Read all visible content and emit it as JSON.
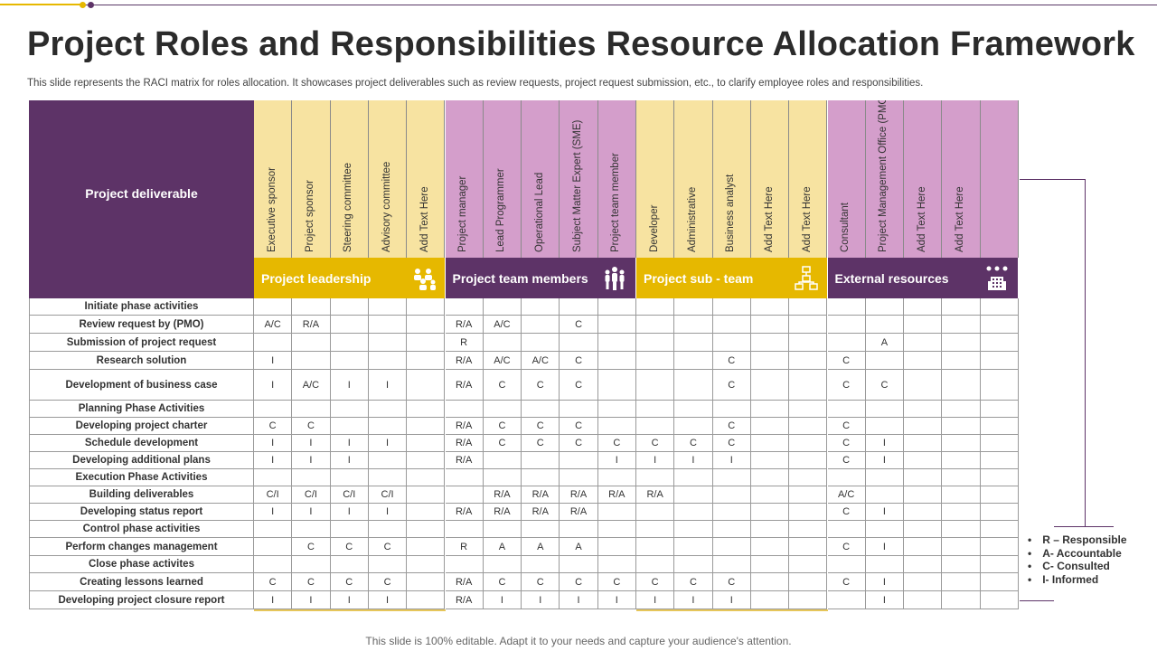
{
  "page": {
    "title": "Project Roles and Responsibilities Resource Allocation Framework",
    "subtitle": "This slide represents the RACI matrix for roles allocation. It showcases project deliverables such as review requests, project request submission, etc., to clarify employee roles and responsibilities.",
    "footer": "This slide is 100% editable. Adapt it to your needs and capture your audience's attention."
  },
  "colors": {
    "purple_dark": "#5d3367",
    "gold": "#e6b800",
    "yellow_light": "#f7e3a1",
    "pink_light": "#d49ecb"
  },
  "matrix": {
    "deliverable_header": "Project deliverable",
    "groups": [
      {
        "name": "Project leadership",
        "icon": "group-people-icon",
        "color": "#e6b800"
      },
      {
        "name": "Project team members",
        "icon": "team-members-icon",
        "color": "#5d3367"
      },
      {
        "name": "Project sub - team",
        "icon": "org-chart-icon",
        "color": "#e6b800"
      },
      {
        "name": "External resources",
        "icon": "building-network-icon",
        "color": "#5d3367"
      }
    ],
    "columns": [
      {
        "label": "Executive sponsor",
        "group": 0
      },
      {
        "label": "Project sponsor",
        "group": 0
      },
      {
        "label": "Steering committee",
        "group": 0
      },
      {
        "label": "Advisory committee",
        "group": 0
      },
      {
        "label": "Add Text Here",
        "group": 0
      },
      {
        "label": "Project manager",
        "group": 1
      },
      {
        "label": "Lead Programmer",
        "group": 1
      },
      {
        "label": "Operational Lead",
        "group": 1
      },
      {
        "label": "Subject Matter Expert (SME)",
        "group": 1
      },
      {
        "label": "Project team member",
        "group": 1
      },
      {
        "label": "Developer",
        "group": 2
      },
      {
        "label": "Administrative",
        "group": 2
      },
      {
        "label": "Business analyst",
        "group": 2
      },
      {
        "label": "Add Text Here",
        "group": 2
      },
      {
        "label": "Add Text Here",
        "group": 2
      },
      {
        "label": "Consultant",
        "group": 3
      },
      {
        "label": "Project Management Office (PMO)",
        "group": 3
      },
      {
        "label": "Add Text Here",
        "group": 3
      },
      {
        "label": "Add Text Here",
        "group": 3
      },
      {
        "label": "",
        "group": 3
      }
    ],
    "rows": [
      {
        "label": "Initiate phase activities",
        "cells": [
          "",
          "",
          "",
          "",
          "",
          "",
          "",
          "",
          "",
          "",
          "",
          "",
          "",
          "",
          "",
          "",
          "",
          "",
          "",
          ""
        ]
      },
      {
        "label": "Review request by (PMO)",
        "cells": [
          "A/C",
          "R/A",
          "",
          "",
          "",
          "R/A",
          "A/C",
          "",
          "C",
          "",
          "",
          "",
          "",
          "",
          "",
          "",
          "",
          "",
          "",
          ""
        ]
      },
      {
        "label": "Submission of project request",
        "cells": [
          "",
          "",
          "",
          "",
          "",
          "R",
          "",
          "",
          "",
          "",
          "",
          "",
          "",
          "",
          "",
          "",
          "A",
          "",
          "",
          ""
        ]
      },
      {
        "label": "Research solution",
        "cells": [
          "I",
          "",
          "",
          "",
          "",
          "R/A",
          "A/C",
          "A/C",
          "C",
          "",
          "",
          "",
          "C",
          "",
          "",
          "C",
          "",
          "",
          "",
          ""
        ]
      },
      {
        "label": "Development of business case",
        "cells": [
          "I",
          "A/C",
          "I",
          "I",
          "",
          "R/A",
          "C",
          "C",
          "C",
          "",
          "",
          "",
          "C",
          "",
          "",
          "C",
          "C",
          "",
          "",
          ""
        ]
      },
      {
        "label": "Planning  Phase Activities",
        "cells": [
          "",
          "",
          "",
          "",
          "",
          "",
          "",
          "",
          "",
          "",
          "",
          "",
          "",
          "",
          "",
          "",
          "",
          "",
          "",
          ""
        ]
      },
      {
        "label": "Developing  project charter",
        "cells": [
          "C",
          "C",
          "",
          "",
          "",
          "R/A",
          "C",
          "C",
          "C",
          "",
          "",
          "",
          "C",
          "",
          "",
          "C",
          "",
          "",
          "",
          ""
        ]
      },
      {
        "label": "Schedule development",
        "cells": [
          "I",
          "I",
          "I",
          "I",
          "",
          "R/A",
          "C",
          "C",
          "C",
          "C",
          "C",
          "C",
          "C",
          "",
          "",
          "C",
          "I",
          "",
          "",
          ""
        ]
      },
      {
        "label": "Developing  additional plans",
        "cells": [
          "I",
          "I",
          "I",
          "",
          "",
          "R/A",
          "",
          "",
          "",
          "I",
          "I",
          "I",
          "I",
          "",
          "",
          "C",
          "I",
          "",
          "",
          ""
        ]
      },
      {
        "label": "Execution  Phase Activities",
        "cells": [
          "",
          "",
          "",
          "",
          "",
          "",
          "",
          "",
          "",
          "",
          "",
          "",
          "",
          "",
          "",
          "",
          "",
          "",
          "",
          ""
        ]
      },
      {
        "label": "Building  deliverables",
        "cells": [
          "C/I",
          "C/I",
          "C/I",
          "C/I",
          "",
          "",
          "R/A",
          "R/A",
          "R/A",
          "R/A",
          "R/A",
          "",
          "",
          "",
          "",
          "A/C",
          "",
          "",
          "",
          ""
        ]
      },
      {
        "label": "Developing  status report",
        "cells": [
          "I",
          "I",
          "I",
          "I",
          "",
          "R/A",
          "R/A",
          "R/A",
          "R/A",
          "",
          "",
          "",
          "",
          "",
          "",
          "C",
          "I",
          "",
          "",
          ""
        ]
      },
      {
        "label": "Control phase activities",
        "cells": [
          "",
          "",
          "",
          "",
          "",
          "",
          "",
          "",
          "",
          "",
          "",
          "",
          "",
          "",
          "",
          "",
          "",
          "",
          "",
          ""
        ]
      },
      {
        "label": "Perform changes management",
        "cells": [
          "",
          "C",
          "C",
          "C",
          "",
          "R",
          "A",
          "A",
          "A",
          "",
          "",
          "",
          "",
          "",
          "",
          "C",
          "I",
          "",
          "",
          ""
        ]
      },
      {
        "label": "Close phase activites",
        "cells": [
          "",
          "",
          "",
          "",
          "",
          "",
          "",
          "",
          "",
          "",
          "",
          "",
          "",
          "",
          "",
          "",
          "",
          "",
          "",
          ""
        ]
      },
      {
        "label": "Creating lessons learned",
        "cells": [
          "C",
          "C",
          "C",
          "C",
          "",
          "R/A",
          "C",
          "C",
          "C",
          "C",
          "C",
          "C",
          "C",
          "",
          "",
          "C",
          "I",
          "",
          "",
          ""
        ]
      },
      {
        "label": "Developing  project closure report",
        "cells": [
          "I",
          "I",
          "I",
          "I",
          "",
          "R/A",
          "I",
          "I",
          "I",
          "I",
          "I",
          "I",
          "I",
          "",
          "",
          "",
          "I",
          "",
          "",
          ""
        ]
      }
    ]
  },
  "legend": {
    "items": [
      "R – Responsible",
      "A- Accountable",
      "C- Consulted",
      "I- Informed"
    ]
  }
}
